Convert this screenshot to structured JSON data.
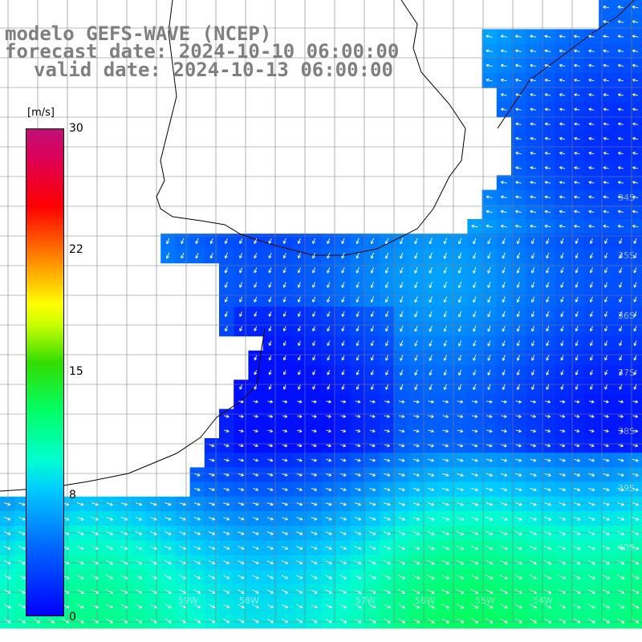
{
  "title": {
    "line1": "modelo GEFS-WAVE (NCEP)",
    "line2": "forecast date: 2024-10-10 06:00:00",
    "line3": "valid date: 2024-10-13 06:00:00"
  },
  "colorbar": {
    "unit": "[m/s]",
    "ticks": [
      "30",
      "22",
      "15",
      "8",
      "0"
    ],
    "tick_values": [
      30,
      22,
      15,
      8,
      0
    ],
    "min": 0,
    "max": 30
  },
  "lat_labels": [
    "34S",
    "35S",
    "36S",
    "37S",
    "38S",
    "39S",
    "40S"
  ],
  "lon_labels": [
    "59W",
    "58W",
    "57W",
    "56W",
    "55W",
    "54W"
  ],
  "colors": {
    "land": "#ffffff",
    "grid": "#7f7f7f",
    "arrows": "#ffffff",
    "coast": "#000000",
    "title": "#7f7f7f"
  },
  "map_content": {
    "variable": "wind speed and direction",
    "region": "Rio de la Plata / Uruguay / Argentine Sea"
  }
}
